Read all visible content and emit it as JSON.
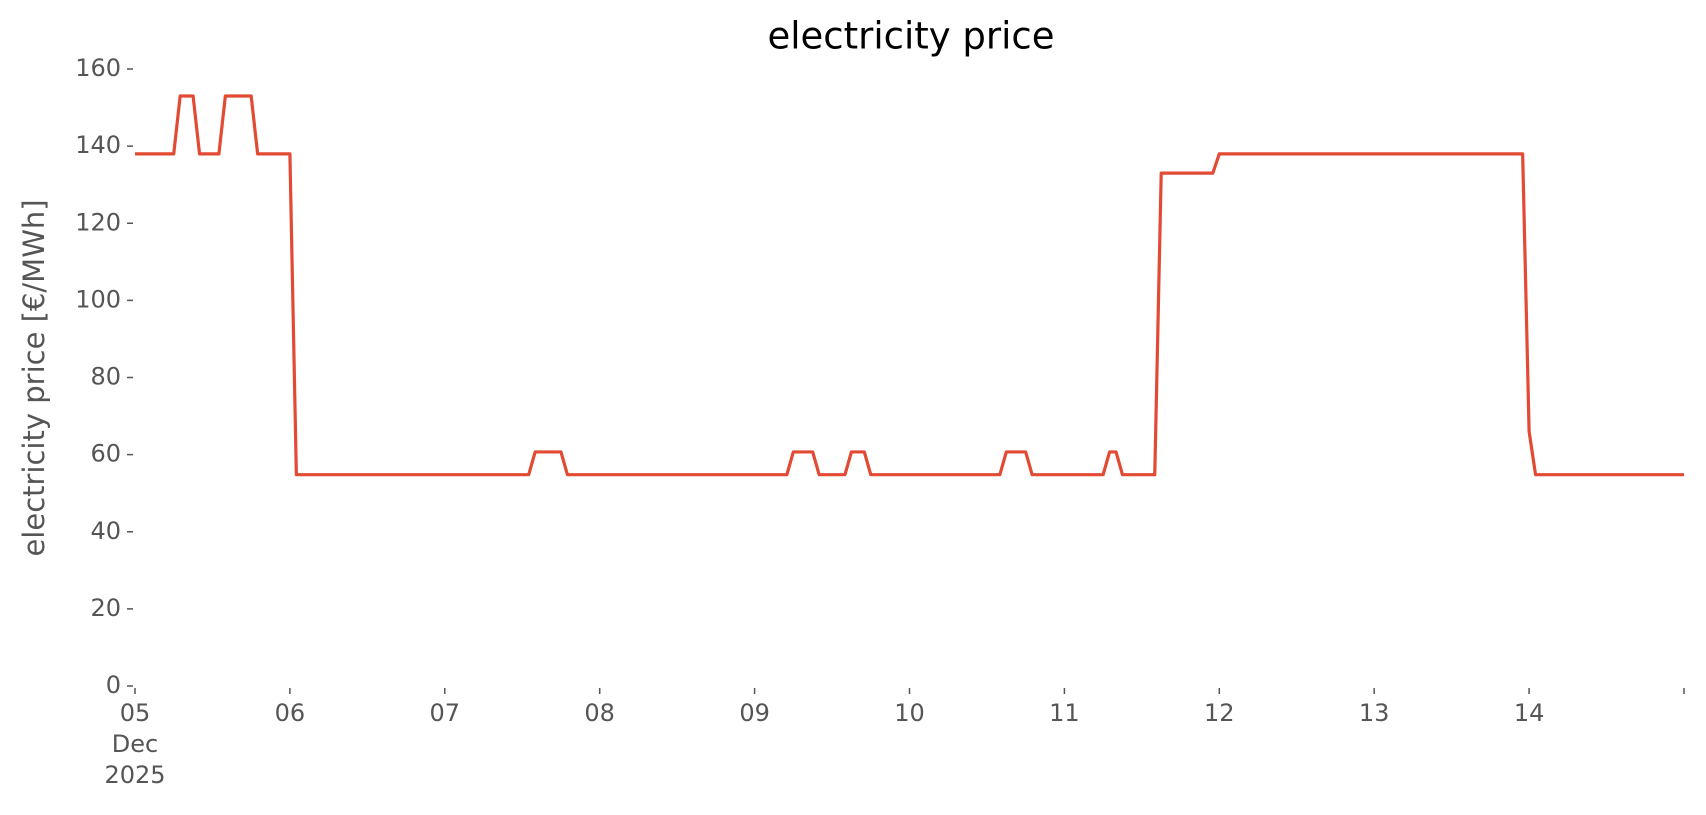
{
  "chart_data": {
    "type": "line",
    "title": "electricity price",
    "y_label": "electricity price [€/MWh]",
    "x": [
      "2025-12-05T00:00",
      "2025-12-05T06:00",
      "2025-12-05T07:00",
      "2025-12-05T09:00",
      "2025-12-05T10:00",
      "2025-12-05T13:00",
      "2025-12-05T14:00",
      "2025-12-05T18:00",
      "2025-12-05T19:00",
      "2025-12-06T00:00",
      "2025-12-06T01:00",
      "2025-12-07T13:00",
      "2025-12-07T14:00",
      "2025-12-07T18:00",
      "2025-12-07T19:00",
      "2025-12-09T05:00",
      "2025-12-09T06:00",
      "2025-12-09T09:00",
      "2025-12-09T10:00",
      "2025-12-09T14:00",
      "2025-12-09T15:00",
      "2025-12-09T17:00",
      "2025-12-09T18:00",
      "2025-12-10T14:00",
      "2025-12-10T15:00",
      "2025-12-10T18:00",
      "2025-12-10T19:00",
      "2025-12-11T06:00",
      "2025-12-11T07:00",
      "2025-12-11T08:00",
      "2025-12-11T09:00",
      "2025-12-11T14:00",
      "2025-12-11T15:00",
      "2025-12-11T23:00",
      "2025-12-12T00:00",
      "2025-12-13T23:00",
      "2025-12-14T00:00",
      "2025-12-14T01:00",
      "2025-12-15T00:00"
    ],
    "series": [
      {
        "name": "electricity price",
        "color": "#e24a33",
        "values": [
          138,
          138,
          153,
          153,
          138,
          138,
          153,
          153,
          138,
          138,
          54.8,
          54.8,
          60.7,
          60.7,
          54.8,
          54.8,
          60.7,
          60.7,
          54.8,
          54.8,
          60.7,
          60.7,
          54.8,
          54.8,
          60.7,
          60.7,
          54.8,
          54.8,
          60.7,
          60.7,
          54.8,
          54.8,
          133,
          133,
          138,
          138,
          66,
          54.8,
          54.8
        ]
      }
    ],
    "xlim": [
      "2025-12-05T00:00",
      "2025-12-15T00:00"
    ],
    "xticks": [
      {
        "value": "2025-12-05T00:00",
        "label": "05\nDec\n2025"
      },
      {
        "value": "2025-12-06T00:00",
        "label": "06"
      },
      {
        "value": "2025-12-07T00:00",
        "label": "07"
      },
      {
        "value": "2025-12-08T00:00",
        "label": "08"
      },
      {
        "value": "2025-12-09T00:00",
        "label": "09"
      },
      {
        "value": "2025-12-10T00:00",
        "label": "10"
      },
      {
        "value": "2025-12-11T00:00",
        "label": "11"
      },
      {
        "value": "2025-12-12T00:00",
        "label": "12"
      },
      {
        "value": "2025-12-13T00:00",
        "label": "13"
      },
      {
        "value": "2025-12-14T00:00",
        "label": "14"
      },
      {
        "value": "2025-12-15T00:00",
        "label": null
      }
    ],
    "ylim": [
      0,
      160
    ],
    "yticks": [
      0,
      20,
      40,
      60,
      80,
      100,
      120,
      140,
      160
    ],
    "grid": false
  }
}
